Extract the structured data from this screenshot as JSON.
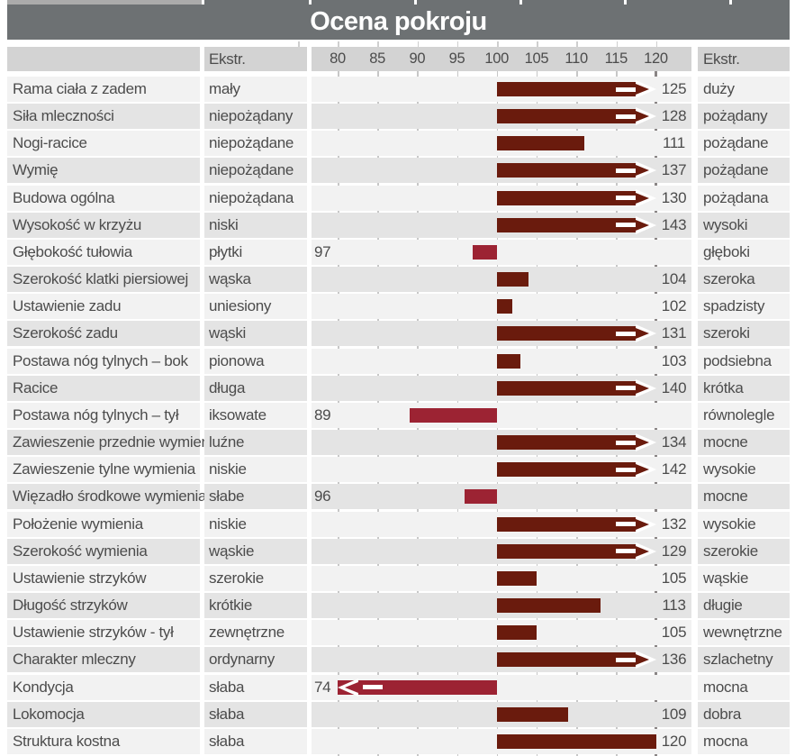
{
  "title": "Ocena pokroju",
  "header": {
    "ekstr_left": "Ekstr.",
    "ekstr_right": "Ekstr."
  },
  "colors": {
    "title_bg": "#6d7173",
    "header_bg": "#d3d3d3",
    "row_light": "#f2f2f2",
    "row_dark": "#e4e4e4",
    "gridline": "#c7c7c7",
    "scale_end_line": "#8a8585",
    "bar_above_100": "#6a1b0d",
    "bar_below_100": "#9c2333",
    "text": "#4c4c4c"
  },
  "chart_data": {
    "type": "bar",
    "title": "Ocena pokroju",
    "orientation": "horizontal",
    "axis": {
      "min": 80,
      "max": 120,
      "baseline": 100,
      "ticks": [
        80,
        85,
        90,
        95,
        100,
        105,
        110,
        115,
        120
      ]
    },
    "legend": "bars start at 100; values over 120 or under 80 are clipped with an arrow",
    "rows": [
      {
        "trait": "Rama ciała z zadem",
        "low": "mały",
        "value": 125,
        "high": "duży"
      },
      {
        "trait": "Siła mleczności",
        "low": "niepożądany",
        "value": 128,
        "high": "pożądany"
      },
      {
        "trait": "Nogi-racice",
        "low": "niepożądane",
        "value": 111,
        "high": "pożądane"
      },
      {
        "trait": "Wymię",
        "low": "niepożądane",
        "value": 137,
        "high": "pożądane"
      },
      {
        "trait": "Budowa ogólna",
        "low": "niepożądana",
        "value": 130,
        "high": "pożądana"
      },
      {
        "trait": "Wysokość w krzyżu",
        "low": "niski",
        "value": 143,
        "high": "wysoki"
      },
      {
        "trait": "Głębokość tułowia",
        "low": "płytki",
        "value": 97,
        "high": "głęboki"
      },
      {
        "trait": "Szerokość klatki piersiowej",
        "low": "wąska",
        "value": 104,
        "high": "szeroka"
      },
      {
        "trait": "Ustawienie zadu",
        "low": "uniesiony",
        "value": 102,
        "high": "spadzisty"
      },
      {
        "trait": "Szerokość zadu",
        "low": "wąski",
        "value": 131,
        "high": "szeroki"
      },
      {
        "trait": "Postawa nóg tylnych –  bok",
        "low": "pionowa",
        "value": 103,
        "high": "podsiebna"
      },
      {
        "trait": "Racice",
        "low": "długa",
        "value": 140,
        "high": "krótka"
      },
      {
        "trait": "Postawa nóg tylnych –  tył",
        "low": "iksowate",
        "value": 89,
        "high": "równolegle"
      },
      {
        "trait": "Zawieszenie przednie wymienia",
        "low": "luźne",
        "value": 134,
        "high": "mocne"
      },
      {
        "trait": "Zawieszenie tylne wymienia",
        "low": "niskie",
        "value": 142,
        "high": "wysokie"
      },
      {
        "trait": "Więzadło środkowe wymienia",
        "low": "słabe",
        "value": 96,
        "high": "mocne"
      },
      {
        "trait": "Położenie wymienia",
        "low": "niskie",
        "value": 132,
        "high": "wysokie"
      },
      {
        "trait": "Szerokość wymienia",
        "low": "wąskie",
        "value": 129,
        "high": "szerokie"
      },
      {
        "trait": "Ustawienie strzyków",
        "low": "szerokie",
        "value": 105,
        "high": "wąskie"
      },
      {
        "trait": "Długość strzyków",
        "low": "krótkie",
        "value": 113,
        "high": "długie"
      },
      {
        "trait": "Ustawienie strzyków - tył",
        "low": "zewnętrzne",
        "value": 105,
        "high": "wewnętrzne"
      },
      {
        "trait": "Charakter mleczny",
        "low": "ordynarny",
        "value": 136,
        "high": "szlachetny"
      },
      {
        "trait": "Kondycja",
        "low": "słaba",
        "value": 74,
        "high": "mocna"
      },
      {
        "trait": "Lokomocja",
        "low": "słaba",
        "value": 109,
        "high": "dobra"
      },
      {
        "trait": "Struktura kostna",
        "low": "słaba",
        "value": 120,
        "high": "mocna"
      }
    ]
  }
}
